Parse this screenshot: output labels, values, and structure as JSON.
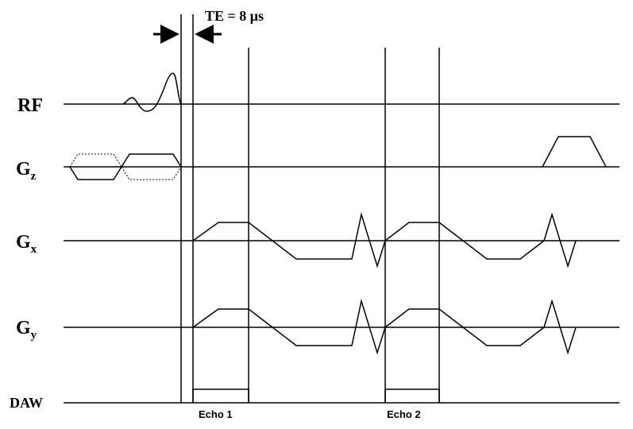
{
  "annotation": "TE = 8 μs",
  "rows": [
    {
      "label": "RF"
    },
    {
      "label": "G",
      "sub": "z"
    },
    {
      "label": "G",
      "sub": "x"
    },
    {
      "label": "G",
      "sub": "y"
    },
    {
      "label": "DAW"
    }
  ],
  "echoes": [
    "Echo 1",
    "Echo 2"
  ]
}
